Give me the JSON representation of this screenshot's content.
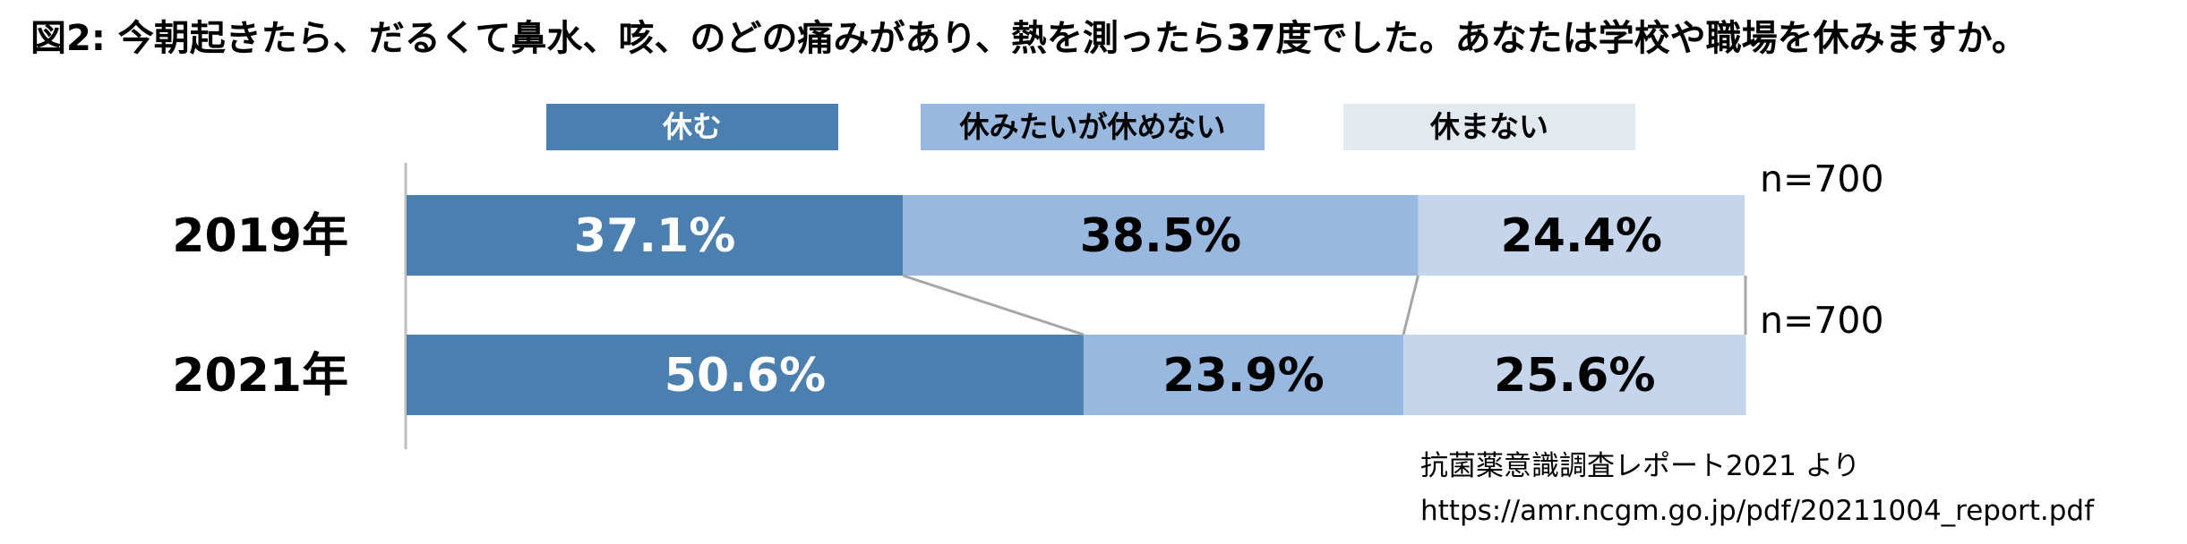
{
  "title": "図2: 今朝起きたら、だるくて鼻水、咳、のどの痛みがあり、熱を測ったら37度でした。あなたは学校や職場を休みますか。",
  "chart_data": {
    "type": "bar",
    "orientation": "horizontal",
    "stacked": "100%",
    "categories": [
      "2019年",
      "2021年"
    ],
    "series": [
      {
        "name": "休む",
        "values": [
          37.1,
          50.6
        ],
        "labels": [
          "37.1%",
          "50.6%"
        ],
        "color": "#4a7faf",
        "text_color": "#ffffff"
      },
      {
        "name": "休みたいが休めない",
        "values": [
          38.5,
          23.9
        ],
        "labels": [
          "38.5%",
          "23.9%"
        ],
        "color": "#98b8df",
        "text_color": "#000000"
      },
      {
        "name": "休まない",
        "values": [
          24.4,
          25.6
        ],
        "labels": [
          "24.4%",
          "25.6%"
        ],
        "color": "#c5d5ec",
        "text_color": "#000000"
      }
    ],
    "n_labels": [
      "n=700",
      "n=700"
    ],
    "xlim": [
      0,
      100
    ],
    "legend_position": "top",
    "grid": false
  },
  "legend_colors": {
    "休む": "#4a7faf",
    "休みたいが休めない": "#98b8df",
    "休まない": "#e3eaef"
  },
  "source": {
    "line1": "抗菌薬意識調査レポート2021 より",
    "line2": "https://amr.ncgm.go.jp/pdf/20211004_report.pdf"
  }
}
